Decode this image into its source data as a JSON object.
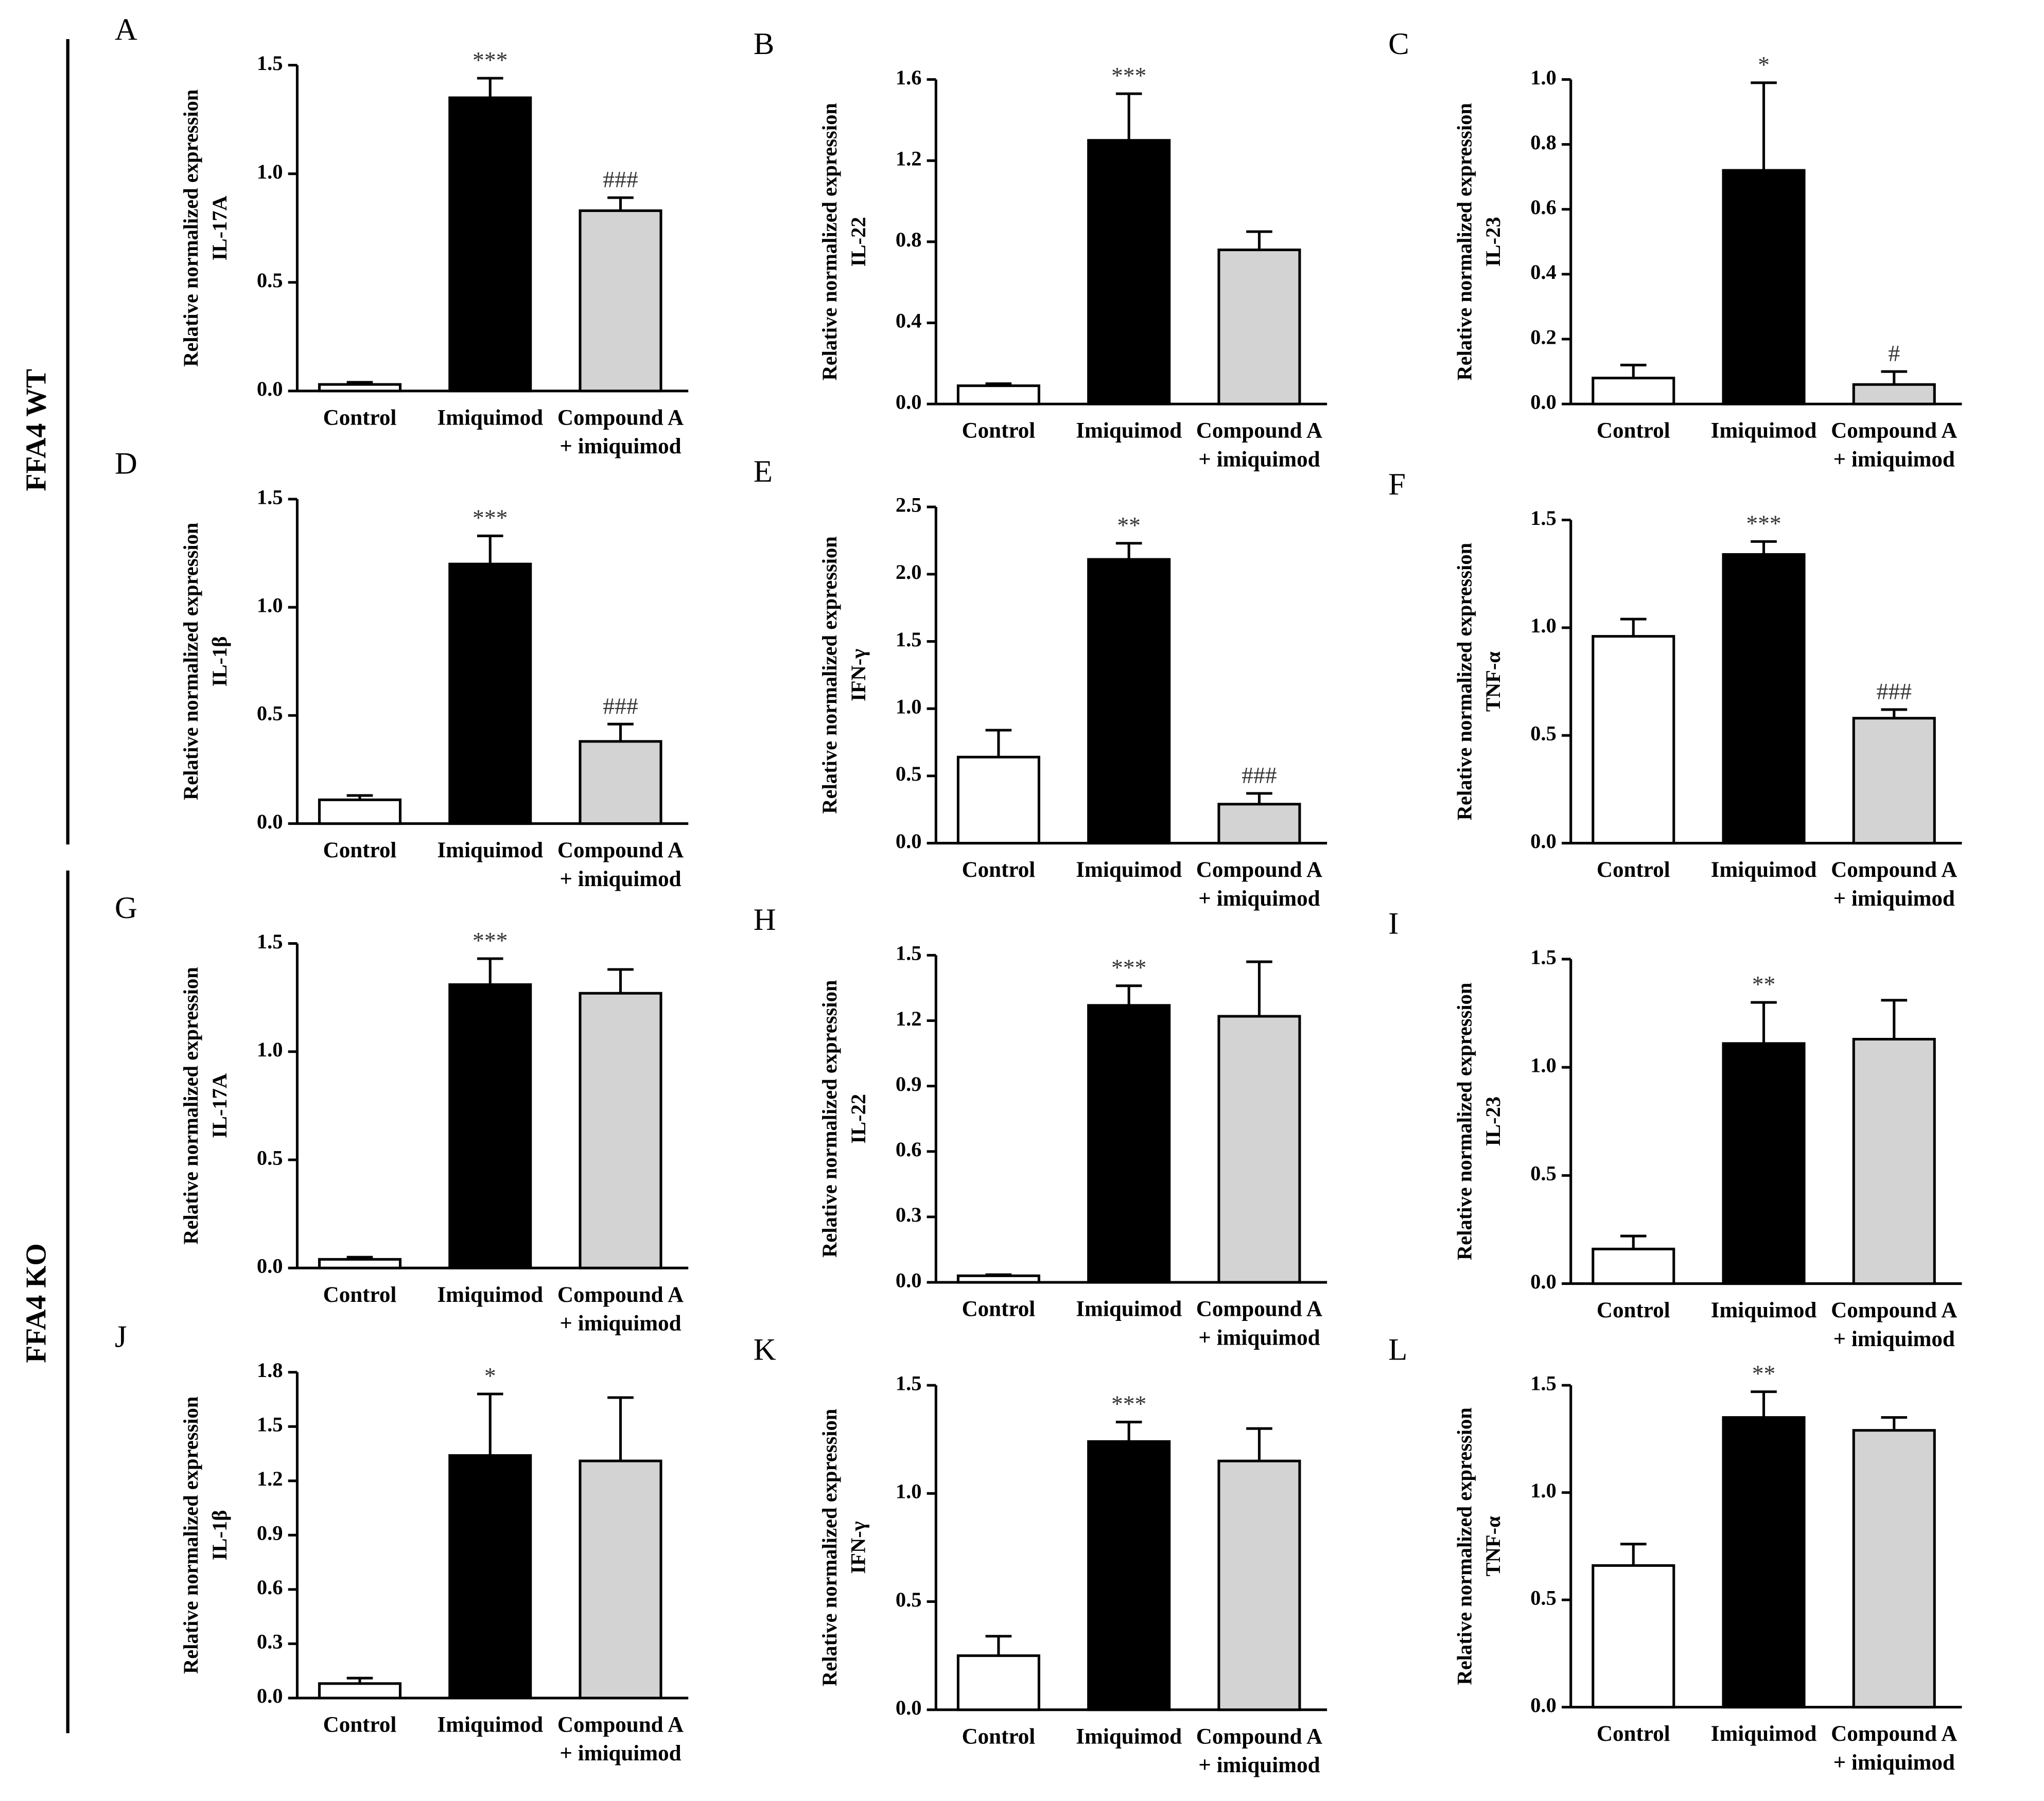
{
  "row_groups": [
    "FFA4 WT",
    "FFA4 KO"
  ],
  "chart_data": [
    {
      "type": "bar",
      "panel": "A",
      "ylabel": [
        "Relative normalized expression",
        "IL-17A"
      ],
      "categories": [
        "Control",
        "Imiquimod",
        [
          "Compound A",
          "+ imiquimod"
        ]
      ],
      "colors": [
        "#ffffff",
        "#000000",
        "#d3d3d3"
      ],
      "values": [
        0.03,
        1.35,
        0.83
      ],
      "errors": [
        0.01,
        0.09,
        0.06
      ],
      "annotations": [
        null,
        "***",
        "###"
      ],
      "ylim": [
        0,
        1.5
      ],
      "yticks": [
        {
          "value": 0,
          "label": "0.0"
        },
        0.5,
        {
          "value": 1,
          "label": "1.0"
        },
        1.5
      ]
    },
    {
      "type": "bar",
      "panel": "B",
      "ylabel": [
        "Relative normalized expression",
        "IL-22"
      ],
      "categories": [
        "Control",
        "Imiquimod",
        [
          "Compound A",
          "+ imiquimod"
        ]
      ],
      "colors": [
        "#ffffff",
        "#000000",
        "#d3d3d3"
      ],
      "values": [
        0.09,
        1.3,
        0.76
      ],
      "errors": [
        0.01,
        0.23,
        0.09
      ],
      "annotations": [
        null,
        "***",
        null
      ],
      "ylim": [
        0,
        1.6
      ],
      "yticks": [
        {
          "value": 0,
          "label": "0.0"
        },
        0.4,
        0.8,
        1.2,
        1.6
      ]
    },
    {
      "type": "bar",
      "panel": "C",
      "ylabel": [
        "Relative normalized expression",
        "IL-23"
      ],
      "categories": [
        "Control",
        "Imiquimod",
        [
          "Compound A",
          "+ imiquimod"
        ]
      ],
      "colors": [
        "#ffffff",
        "#000000",
        "#d3d3d3"
      ],
      "values": [
        0.08,
        0.72,
        0.06
      ],
      "errors": [
        0.04,
        0.27,
        0.04
      ],
      "annotations": [
        null,
        "*",
        "#"
      ],
      "ylim": [
        0,
        1.0
      ],
      "yticks": [
        {
          "value": 0,
          "label": "0.0"
        },
        0.2,
        0.4,
        0.6,
        0.8,
        {
          "value": 1,
          "label": "1.0"
        }
      ]
    },
    {
      "type": "bar",
      "panel": "D",
      "ylabel": [
        "Relative normalized expression",
        "IL-1β"
      ],
      "categories": [
        "Control",
        "Imiquimod",
        [
          "Compound A",
          "+ imiquimod"
        ]
      ],
      "colors": [
        "#ffffff",
        "#000000",
        "#d3d3d3"
      ],
      "values": [
        0.11,
        1.2,
        0.38
      ],
      "errors": [
        0.02,
        0.13,
        0.08
      ],
      "annotations": [
        null,
        "***",
        "###"
      ],
      "ylim": [
        0,
        1.5
      ],
      "yticks": [
        {
          "value": 0,
          "label": "0.0"
        },
        0.5,
        {
          "value": 1,
          "label": "1.0"
        },
        1.5
      ]
    },
    {
      "type": "bar",
      "panel": "E",
      "ylabel": [
        "Relative normalized expression",
        "IFN-γ"
      ],
      "categories": [
        "Control",
        "Imiquimod",
        [
          "Compound A",
          "+ imiquimod"
        ]
      ],
      "colors": [
        "#ffffff",
        "#000000",
        "#d3d3d3"
      ],
      "values": [
        0.64,
        2.11,
        0.29
      ],
      "errors": [
        0.2,
        0.12,
        0.08
      ],
      "annotations": [
        null,
        "**",
        "###"
      ],
      "ylim": [
        0,
        2.5
      ],
      "yticks": [
        {
          "value": 0,
          "label": "0.0"
        },
        0.5,
        {
          "value": 1,
          "label": "1.0"
        },
        1.5,
        {
          "value": 2,
          "label": "2.0"
        },
        2.5
      ]
    },
    {
      "type": "bar",
      "panel": "F",
      "ylabel": [
        "Relative normalized expression",
        "TNF-α"
      ],
      "categories": [
        "Control",
        "Imiquimod",
        [
          "Compound A",
          "+ imiquimod"
        ]
      ],
      "colors": [
        "#ffffff",
        "#000000",
        "#d3d3d3"
      ],
      "values": [
        0.96,
        1.34,
        0.58
      ],
      "errors": [
        0.08,
        0.06,
        0.04
      ],
      "annotations": [
        null,
        "***",
        "###"
      ],
      "ylim": [
        0,
        1.5
      ],
      "yticks": [
        {
          "value": 0,
          "label": "0.0"
        },
        0.5,
        {
          "value": 1,
          "label": "1.0"
        },
        1.5
      ]
    },
    {
      "type": "bar",
      "panel": "G",
      "ylabel": [
        "Relative normalized expression",
        "IL-17A"
      ],
      "categories": [
        "Control",
        "Imiquimod",
        [
          "Compound A",
          "+ imiquimod"
        ]
      ],
      "colors": [
        "#ffffff",
        "#000000",
        "#d3d3d3"
      ],
      "values": [
        0.04,
        1.31,
        1.27
      ],
      "errors": [
        0.01,
        0.12,
        0.11
      ],
      "annotations": [
        null,
        "***",
        null
      ],
      "ylim": [
        0,
        1.5
      ],
      "yticks": [
        {
          "value": 0,
          "label": "0.0"
        },
        0.5,
        {
          "value": 1,
          "label": "1.0"
        },
        1.5
      ]
    },
    {
      "type": "bar",
      "panel": "H",
      "ylabel": [
        "Relative normalized expression",
        "IL-22"
      ],
      "categories": [
        "Control",
        "Imiquimod",
        [
          "Compound A",
          "+ imiquimod"
        ]
      ],
      "colors": [
        "#ffffff",
        "#000000",
        "#d3d3d3"
      ],
      "values": [
        0.03,
        1.27,
        1.22
      ],
      "errors": [
        0.005,
        0.09,
        0.25
      ],
      "annotations": [
        null,
        "***",
        null
      ],
      "ylim": [
        0,
        1.5
      ],
      "yticks": [
        {
          "value": 0,
          "label": "0.0"
        },
        0.3,
        0.6,
        0.9,
        1.2,
        1.5
      ]
    },
    {
      "type": "bar",
      "panel": "I",
      "ylabel": [
        "Relative normalized expression",
        "IL-23"
      ],
      "categories": [
        "Control",
        "Imiquimod",
        [
          "Compound A",
          "+ imiquimod"
        ]
      ],
      "colors": [
        "#ffffff",
        "#000000",
        "#d3d3d3"
      ],
      "values": [
        0.16,
        1.11,
        1.13
      ],
      "errors": [
        0.06,
        0.19,
        0.18
      ],
      "annotations": [
        null,
        "**",
        null
      ],
      "ylim": [
        0,
        1.5
      ],
      "yticks": [
        {
          "value": 0,
          "label": "0.0"
        },
        0.5,
        {
          "value": 1,
          "label": "1.0"
        },
        1.5
      ]
    },
    {
      "type": "bar",
      "panel": "J",
      "ylabel": [
        "Relative normalized expression",
        "IL-1β"
      ],
      "categories": [
        "Control",
        "Imiquimod",
        [
          "Compound A",
          "+ imiquimod"
        ]
      ],
      "colors": [
        "#ffffff",
        "#000000",
        "#d3d3d3"
      ],
      "values": [
        0.08,
        1.34,
        1.31
      ],
      "errors": [
        0.03,
        0.34,
        0.35
      ],
      "annotations": [
        null,
        "*",
        null
      ],
      "ylim": [
        0,
        1.8
      ],
      "yticks": [
        {
          "value": 0,
          "label": "0.0"
        },
        0.3,
        0.6,
        0.9,
        1.2,
        1.5,
        1.8
      ]
    },
    {
      "type": "bar",
      "panel": "K",
      "ylabel": [
        "Relative normalized expression",
        "IFN-γ"
      ],
      "categories": [
        "Control",
        "Imiquimod",
        [
          "Compound A",
          "+ imiquimod"
        ]
      ],
      "colors": [
        "#ffffff",
        "#000000",
        "#d3d3d3"
      ],
      "values": [
        0.25,
        1.24,
        1.15
      ],
      "errors": [
        0.09,
        0.09,
        0.15
      ],
      "annotations": [
        null,
        "***",
        null
      ],
      "ylim": [
        0,
        1.5
      ],
      "yticks": [
        {
          "value": 0,
          "label": "0.0"
        },
        0.5,
        {
          "value": 1,
          "label": "1.0"
        },
        1.5
      ]
    },
    {
      "type": "bar",
      "panel": "L",
      "ylabel": [
        "Relative normalized expression",
        "TNF-α"
      ],
      "categories": [
        "Control",
        "Imiquimod",
        [
          "Compound A",
          "+ imiquimod"
        ]
      ],
      "colors": [
        "#ffffff",
        "#000000",
        "#d3d3d3"
      ],
      "values": [
        0.66,
        1.35,
        1.29
      ],
      "errors": [
        0.1,
        0.12,
        0.06
      ],
      "annotations": [
        null,
        "**",
        null
      ],
      "ylim": [
        0,
        1.5
      ],
      "yticks": [
        {
          "value": 0,
          "label": "0.0"
        },
        0.5,
        {
          "value": 1,
          "label": "1.0"
        },
        1.5
      ]
    }
  ]
}
